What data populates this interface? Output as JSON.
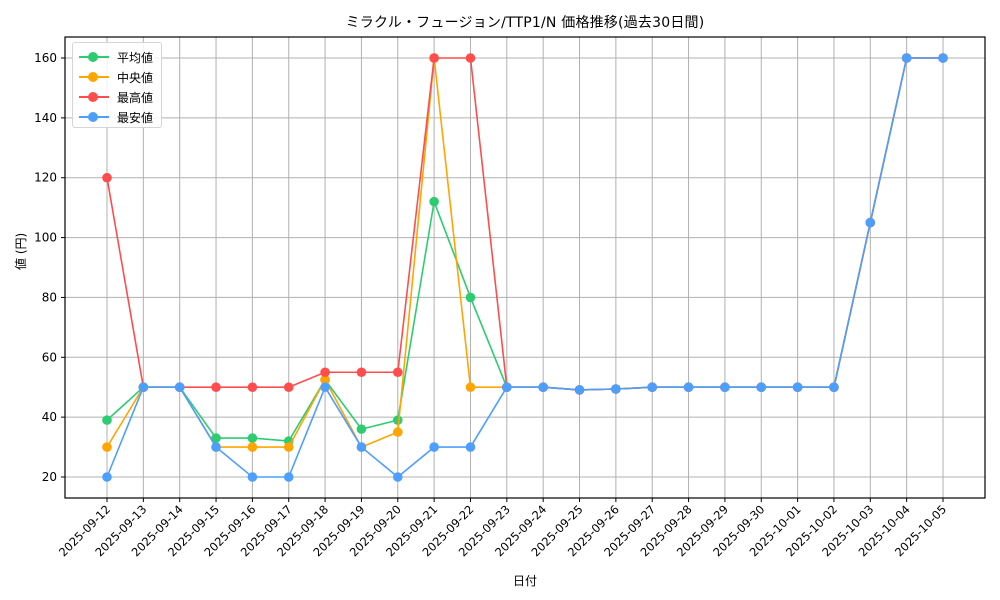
{
  "chart_data": {
    "type": "line",
    "title": "ミラクル・フュージョン/TTP1/N 価格推移(過去30日間)",
    "xlabel": "日付",
    "ylabel": "値 (円)",
    "x": [
      "2025-09-12",
      "2025-09-13",
      "2025-09-14",
      "2025-09-15",
      "2025-09-16",
      "2025-09-17",
      "2025-09-18",
      "2025-09-19",
      "2025-09-20",
      "2025-09-21",
      "2025-09-22",
      "2025-09-23",
      "2025-09-24",
      "2025-09-25",
      "2025-09-26",
      "2025-09-27",
      "2025-09-28",
      "2025-09-29",
      "2025-09-30",
      "2025-10-01",
      "2025-10-02",
      "2025-10-03",
      "2025-10-04",
      "2025-10-05"
    ],
    "series": [
      {
        "name": "平均値",
        "color": "#2ecc71",
        "values": [
          39,
          50,
          50,
          33,
          33,
          32,
          52.5,
          36,
          39,
          112,
          80,
          50,
          50,
          49.1,
          49.4,
          50,
          50,
          50,
          50,
          50,
          50,
          105,
          160,
          160
        ]
      },
      {
        "name": "中央値",
        "color": "#ffa500",
        "values": [
          30,
          50,
          50,
          30,
          30,
          30,
          52.5,
          30,
          35,
          160,
          50,
          50,
          50,
          49.1,
          49.4,
          50,
          50,
          50,
          50,
          50,
          50,
          105,
          160,
          160
        ]
      },
      {
        "name": "最高値",
        "color": "#ff4d4d",
        "values": [
          120,
          50,
          50,
          50,
          50,
          50,
          55,
          55,
          55,
          160,
          160,
          50,
          50,
          49.1,
          49.4,
          50,
          50,
          50,
          50,
          50,
          50,
          105,
          160,
          160
        ]
      },
      {
        "name": "最安値",
        "color": "#4d9fff",
        "values": [
          20,
          50,
          50,
          30,
          20,
          20,
          50,
          30,
          20,
          30,
          30,
          50,
          50,
          49.1,
          49.4,
          50,
          50,
          50,
          50,
          50,
          50,
          105,
          160,
          160
        ]
      }
    ],
    "yticks": [
      20,
      40,
      60,
      80,
      100,
      120,
      140,
      160
    ],
    "ylim": [
      13,
      167
    ],
    "grid": true,
    "legend_position": "upper left",
    "marker": "circle"
  }
}
